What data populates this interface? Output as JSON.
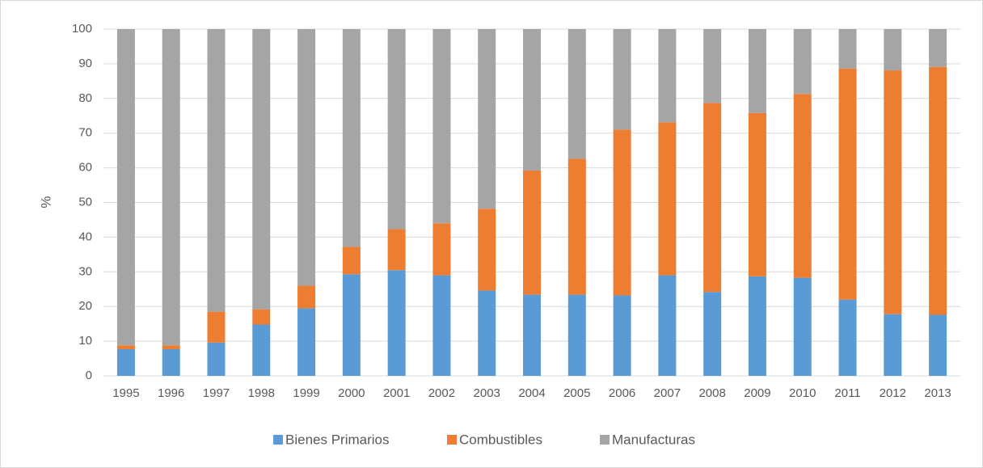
{
  "chart_data": {
    "type": "bar",
    "stacked": true,
    "y_label": "%",
    "categories": [
      "1995",
      "1996",
      "1997",
      "1998",
      "1999",
      "2000",
      "2001",
      "2002",
      "2003",
      "2004",
      "2005",
      "2006",
      "2007",
      "2008",
      "2009",
      "2010",
      "2011",
      "2012",
      "2013"
    ],
    "series": [
      {
        "name": "Bienes Primarios",
        "color": "#5b9bd5",
        "values": [
          7.7,
          7.7,
          9.6,
          14.8,
          19.5,
          29.3,
          30.5,
          29.0,
          24.6,
          23.4,
          23.4,
          23.2,
          29.0,
          24.2,
          28.7,
          28.3,
          22.0,
          17.8,
          17.6
        ]
      },
      {
        "name": "Combustibles",
        "color": "#ed7d31",
        "values": [
          1.1,
          1.1,
          8.9,
          4.4,
          6.5,
          7.9,
          11.8,
          15.0,
          23.6,
          35.8,
          39.2,
          47.8,
          44.1,
          54.5,
          47.1,
          53.0,
          66.6,
          70.3,
          71.5
        ]
      },
      {
        "name": "Manufacturas",
        "color": "#a5a5a5",
        "values": [
          91.2,
          91.2,
          81.5,
          80.8,
          74.0,
          62.8,
          57.7,
          56.0,
          51.8,
          40.8,
          37.4,
          29.0,
          26.9,
          21.3,
          24.2,
          18.7,
          11.4,
          11.9,
          10.9
        ]
      }
    ],
    "ylim": [
      0,
      100
    ],
    "yticks": [
      0,
      10,
      20,
      30,
      40,
      50,
      60,
      70,
      80,
      90,
      100
    ],
    "grid": true,
    "legend": "bottom"
  }
}
